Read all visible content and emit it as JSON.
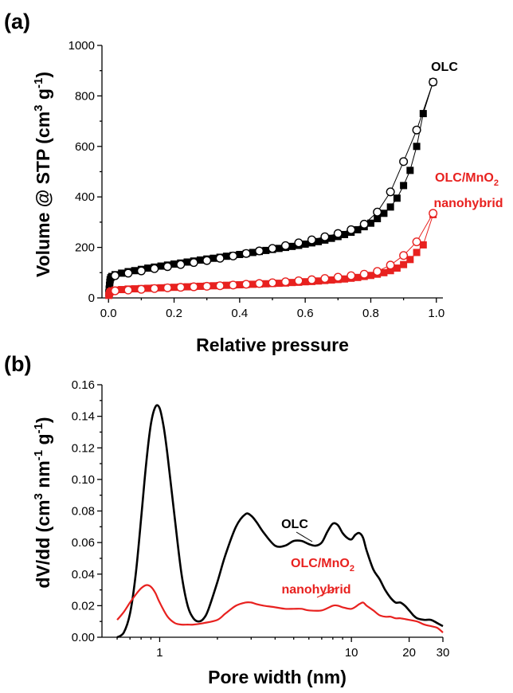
{
  "chart_data": [
    {
      "panel": "(a)",
      "type": "scatter",
      "xlabel": "Relative pressure",
      "ylabel": "Volume @ STP (cm³ g⁻¹)",
      "ylabel_parts": {
        "pre": "Volume @ STP (cm",
        "sup1": "3",
        "mid": " g",
        "sup2": "-1",
        "post": ")"
      },
      "xlim": [
        -0.02,
        1.02
      ],
      "ylim": [
        0,
        1000
      ],
      "xticks": [
        "0.0",
        "0.2",
        "0.4",
        "0.6",
        "0.8",
        "1.0"
      ],
      "xtick_values": [
        0,
        0.2,
        0.4,
        0.6,
        0.8,
        1.0
      ],
      "yticks": [
        "0",
        "200",
        "400",
        "600",
        "800",
        "1000"
      ],
      "ytick_values": [
        0,
        200,
        400,
        600,
        800,
        1000
      ],
      "series": [
        {
          "name": "OLC",
          "color": "#000000",
          "adsorption": {
            "marker": "filled-square",
            "x": [
              0.001,
              0.002,
              0.003,
              0.004,
              0.005,
              0.007,
              0.01,
              0.02,
              0.04,
              0.06,
              0.08,
              0.1,
              0.12,
              0.14,
              0.16,
              0.18,
              0.2,
              0.22,
              0.24,
              0.26,
              0.28,
              0.3,
              0.32,
              0.34,
              0.36,
              0.38,
              0.4,
              0.42,
              0.44,
              0.46,
              0.48,
              0.5,
              0.52,
              0.54,
              0.56,
              0.58,
              0.6,
              0.62,
              0.64,
              0.66,
              0.68,
              0.7,
              0.72,
              0.74,
              0.76,
              0.78,
              0.8,
              0.82,
              0.84,
              0.86,
              0.88,
              0.9,
              0.92,
              0.94,
              0.96,
              0.99
            ],
            "y": [
              20,
              35,
              50,
              62,
              72,
              80,
              85,
              92,
              98,
              104,
              108,
              113,
              118,
              122,
              126,
              130,
              134,
              138,
              142,
              146,
              150,
              154,
              157,
              161,
              165,
              168,
              172,
              176,
              180,
              184,
              188,
              192,
              196,
              200,
              204,
              208,
              213,
              218,
              223,
              229,
              236,
              243,
              251,
              260,
              270,
              282,
              296,
              314,
              335,
              360,
              395,
              445,
              505,
              600,
              730,
              855
            ]
          },
          "desorption": {
            "marker": "open-circle",
            "x": [
              0.99,
              0.94,
              0.9,
              0.86,
              0.82,
              0.78,
              0.74,
              0.7,
              0.66,
              0.62,
              0.58,
              0.54,
              0.5,
              0.46,
              0.42,
              0.38,
              0.34,
              0.3,
              0.26,
              0.22,
              0.18,
              0.14,
              0.1,
              0.06,
              0.02
            ],
            "y": [
              855,
              665,
              540,
              420,
              340,
              292,
              270,
              255,
              242,
              230,
              218,
              207,
              196,
              186,
              176,
              166,
              157,
              148,
              140,
              132,
              124,
              116,
              107,
              98,
              88
            ]
          }
        },
        {
          "name": "OLC/MnO₂ nanohybrid",
          "color": "#e8211f",
          "adsorption": {
            "marker": "filled-square",
            "x": [
              0.001,
              0.003,
              0.005,
              0.01,
              0.02,
              0.04,
              0.06,
              0.08,
              0.1,
              0.12,
              0.14,
              0.16,
              0.18,
              0.2,
              0.22,
              0.24,
              0.26,
              0.28,
              0.3,
              0.32,
              0.34,
              0.36,
              0.38,
              0.4,
              0.42,
              0.44,
              0.46,
              0.48,
              0.5,
              0.52,
              0.54,
              0.56,
              0.58,
              0.6,
              0.62,
              0.64,
              0.66,
              0.68,
              0.7,
              0.72,
              0.74,
              0.76,
              0.78,
              0.8,
              0.82,
              0.84,
              0.86,
              0.88,
              0.9,
              0.92,
              0.94,
              0.96,
              0.99
            ],
            "y": [
              10,
              18,
              24,
              28,
              31,
              33,
              35,
              36,
              37,
              38,
              39,
              40,
              41,
              42,
              43,
              44,
              45,
              46,
              47,
              48,
              49,
              50,
              51,
              52,
              53,
              54,
              55,
              56,
              57,
              58,
              59,
              61,
              62,
              64,
              65,
              67,
              69,
              71,
              73,
              75,
              78,
              81,
              85,
              89,
              94,
              100,
              108,
              118,
              132,
              152,
              180,
              210,
              330
            ]
          },
          "desorption": {
            "marker": "open-circle",
            "x": [
              0.99,
              0.94,
              0.9,
              0.86,
              0.82,
              0.78,
              0.74,
              0.7,
              0.66,
              0.62,
              0.58,
              0.54,
              0.5,
              0.46,
              0.42,
              0.38,
              0.34,
              0.3,
              0.26,
              0.22,
              0.18,
              0.14,
              0.1,
              0.06,
              0.02
            ],
            "y": [
              335,
              222,
              168,
              130,
              105,
              94,
              88,
              82,
              77,
              72,
              68,
              64,
              60,
              57,
              54,
              51,
              48,
              46,
              44,
              42,
              40,
              37,
              34,
              31,
              28
            ]
          }
        }
      ],
      "annotations": [
        {
          "text": "OLC",
          "color": "#000000"
        },
        {
          "text_pre": "OLC/MnO",
          "sub": "2",
          "text2": "nanohybrid",
          "color": "#e8211f"
        }
      ]
    },
    {
      "panel": "(b)",
      "type": "line",
      "xscale": "log",
      "xlabel": "Pore width (nm)",
      "ylabel": "dV/dd (cm³ nm⁻¹ g⁻¹)",
      "ylabel_parts": {
        "pre": "dV/dd (cm",
        "sup1": "3",
        "mid": " nm",
        "sup2": "-1",
        "mid2": " g",
        "sup3": "-1",
        "post": ")"
      },
      "xlim": [
        0.5,
        30
      ],
      "ylim": [
        0,
        0.16
      ],
      "xticks": [
        "1",
        "10",
        "20",
        "30"
      ],
      "xtick_values": [
        1,
        10,
        20,
        30
      ],
      "yticks": [
        "0.00",
        "0.02",
        "0.04",
        "0.06",
        "0.08",
        "0.10",
        "0.12",
        "0.14",
        "0.16"
      ],
      "ytick_values": [
        0,
        0.02,
        0.04,
        0.06,
        0.08,
        0.1,
        0.12,
        0.14,
        0.16
      ],
      "series": [
        {
          "name": "OLC",
          "color": "#000000",
          "x": [
            0.6,
            0.65,
            0.7,
            0.75,
            0.8,
            0.85,
            0.9,
            0.95,
            1.0,
            1.05,
            1.1,
            1.2,
            1.3,
            1.4,
            1.5,
            1.6,
            1.7,
            1.8,
            2.0,
            2.2,
            2.5,
            2.8,
            3.0,
            3.2,
            3.5,
            4.0,
            4.5,
            5.0,
            5.5,
            6.0,
            6.5,
            7.0,
            7.5,
            8.0,
            8.5,
            9.0,
            9.5,
            10.0,
            10.5,
            11.0,
            11.5,
            12.0,
            13.0,
            14.0,
            15.0,
            16.0,
            17.0,
            18.0,
            19.0,
            20.0,
            21.0,
            22.0,
            24.0,
            26.0,
            28.0,
            30.0
          ],
          "y": [
            0.0,
            0.003,
            0.015,
            0.04,
            0.075,
            0.11,
            0.135,
            0.146,
            0.145,
            0.133,
            0.115,
            0.075,
            0.04,
            0.02,
            0.012,
            0.01,
            0.012,
            0.018,
            0.035,
            0.052,
            0.07,
            0.078,
            0.077,
            0.073,
            0.066,
            0.058,
            0.058,
            0.061,
            0.061,
            0.059,
            0.058,
            0.06,
            0.067,
            0.072,
            0.071,
            0.066,
            0.063,
            0.062,
            0.065,
            0.066,
            0.063,
            0.055,
            0.043,
            0.037,
            0.03,
            0.025,
            0.022,
            0.022,
            0.02,
            0.017,
            0.014,
            0.012,
            0.011,
            0.011,
            0.009,
            0.007
          ]
        },
        {
          "name": "OLC/MnO₂ nanohybrid",
          "color": "#e8211f",
          "x": [
            0.6,
            0.65,
            0.7,
            0.75,
            0.8,
            0.85,
            0.9,
            0.95,
            1.0,
            1.1,
            1.2,
            1.3,
            1.4,
            1.5,
            1.7,
            2.0,
            2.2,
            2.5,
            2.8,
            3.0,
            3.2,
            3.5,
            4.0,
            4.5,
            5.0,
            5.5,
            6.0,
            7.0,
            8.0,
            8.5,
            9.0,
            10.0,
            11.0,
            11.5,
            12.0,
            13.0,
            14.0,
            15.0,
            16.0,
            17.0,
            18.0,
            20.0,
            22.0,
            24.0,
            26.0,
            28.0,
            30.0
          ],
          "y": [
            0.011,
            0.016,
            0.022,
            0.027,
            0.031,
            0.033,
            0.032,
            0.028,
            0.022,
            0.013,
            0.009,
            0.008,
            0.008,
            0.008,
            0.009,
            0.011,
            0.015,
            0.02,
            0.022,
            0.022,
            0.021,
            0.02,
            0.019,
            0.018,
            0.018,
            0.018,
            0.017,
            0.017,
            0.02,
            0.02,
            0.019,
            0.018,
            0.021,
            0.022,
            0.02,
            0.017,
            0.014,
            0.013,
            0.013,
            0.012,
            0.012,
            0.011,
            0.01,
            0.008,
            0.007,
            0.006,
            0.003
          ]
        }
      ],
      "annotations": [
        {
          "text": "OLC",
          "color": "#000000"
        },
        {
          "text_pre": "OLC/MnO",
          "sub": "2",
          "text2": "nanohybrid",
          "color": "#e8211f"
        }
      ]
    }
  ]
}
